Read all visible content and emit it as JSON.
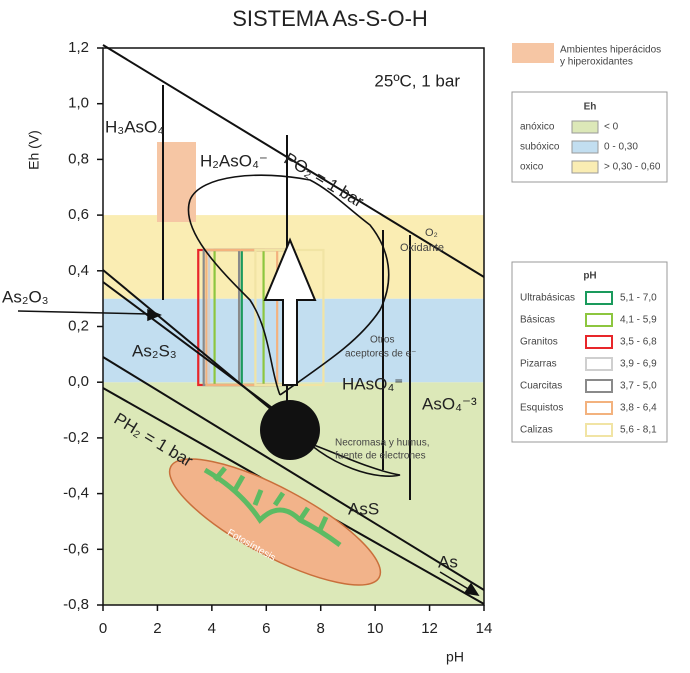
{
  "chart_data": {
    "type": "pourbaix",
    "title": "SISTEMA  As-S-O-H",
    "subtitle": "25ºC, 1 bar",
    "x_label": "pH",
    "y_label": "Eh (V)",
    "xlim": [
      0,
      14
    ],
    "ylim": [
      -0.8,
      1.2
    ],
    "xticks": [
      0,
      2,
      4,
      6,
      8,
      10,
      12,
      14
    ],
    "yticks": [
      {
        "value": -0.8,
        "label": "-0,8"
      },
      {
        "value": -0.6,
        "label": "-0,6"
      },
      {
        "value": -0.4,
        "label": "-0,4"
      },
      {
        "value": -0.2,
        "label": "-0,2"
      },
      {
        "value": 0,
        "label": "0,0"
      },
      {
        "value": 0.2,
        "label": "0,2"
      },
      {
        "value": 0.4,
        "label": "0,4"
      },
      {
        "value": 0.6,
        "label": "0,6"
      },
      {
        "value": 0.8,
        "label": "0,8"
      },
      {
        "value": 1.0,
        "label": "1,0"
      },
      {
        "value": 1.2,
        "label": "1,2"
      }
    ],
    "annotations": [
      "H₃AsO₄",
      "H₂AsO₄⁻",
      "PO₂ = 1 bar",
      "O₂",
      "Oxidante",
      "As₂O₃",
      "As₂S₃",
      "Otros",
      "aceptores de e⁻",
      "HAsO₄⁼",
      "AsO₄⁻³",
      "Necromasa y humus,",
      "fuente de electrones",
      "PH₂ = 1 bar",
      "AsS",
      "Fotosíntesis",
      "As"
    ],
    "hyper_legend": [
      "Ambientes hiperácidos",
      "y hiperoxidantes"
    ],
    "eh_legend": {
      "title": "Eh",
      "zones": [
        {
          "name": "anóxico",
          "label": "< 0",
          "upper": 0,
          "color": "#dce8b8"
        },
        {
          "name": "subóxico",
          "label": "0 - 0,30",
          "upper": 0.3,
          "color": "#c2def0"
        },
        {
          "name": "oxico",
          "label": "> 0,30 - 0,60",
          "upper": 0.6,
          "color": "#faedb3"
        }
      ]
    },
    "ph_legend": {
      "title": "pH",
      "series": [
        {
          "name": "Ultrabásicas",
          "color": "#1a9a5c",
          "values": [
            5.1,
            7.0
          ],
          "value_label": "5,1 - 7,0"
        },
        {
          "name": "Básicas",
          "color": "#8dc63f",
          "values": [
            4.1,
            5.9
          ],
          "value_label": "4,1 - 5,9"
        },
        {
          "name": "Granitos",
          "color": "#e8262a",
          "values": [
            3.5,
            6.8
          ],
          "value_label": "3,5 - 6,8"
        },
        {
          "name": "Pizarras",
          "color": "#cfcfcf",
          "values": [
            3.9,
            6.9
          ],
          "value_label": "3,9 - 6,9"
        },
        {
          "name": "Cuarcitas",
          "color": "#8a8a8a",
          "values": [
            3.7,
            5.0
          ],
          "value_label": "3,7 - 5,0"
        },
        {
          "name": "Esquistos",
          "color": "#f3b27e",
          "values": [
            3.8,
            6.4
          ],
          "value_label": "3,8 - 6,4"
        },
        {
          "name": "Calizas",
          "color": "#f1e4a4",
          "values": [
            5.6,
            8.1
          ],
          "value_label": "5,6 - 8,1"
        }
      ]
    }
  }
}
